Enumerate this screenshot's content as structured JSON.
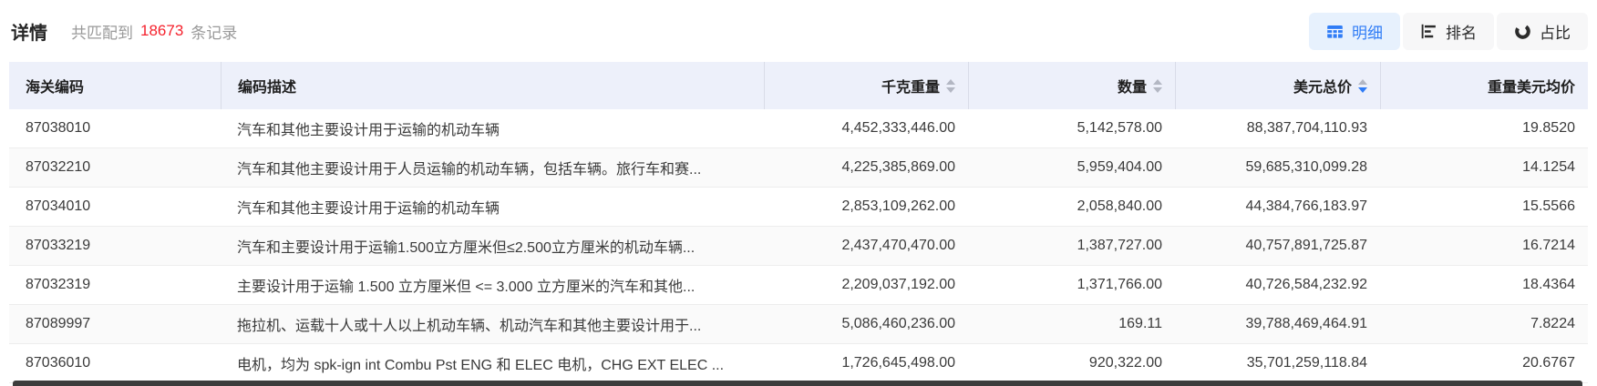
{
  "header": {
    "title": "详情",
    "match_prefix": "共匹配到",
    "match_count": "18673",
    "match_suffix": "条记录",
    "view_buttons": [
      {
        "label": "明细",
        "icon": "table-icon",
        "active": true
      },
      {
        "label": "排名",
        "icon": "bar-chart-icon",
        "active": false
      },
      {
        "label": "占比",
        "icon": "donut-chart-icon",
        "active": false
      }
    ]
  },
  "table": {
    "columns": [
      {
        "label": "海关编码",
        "align": "left",
        "sortable": false,
        "sort": "none"
      },
      {
        "label": "编码描述",
        "align": "left",
        "sortable": false,
        "sort": "none"
      },
      {
        "label": "千克重量",
        "align": "right",
        "sortable": true,
        "sort": "none"
      },
      {
        "label": "数量",
        "align": "right",
        "sortable": true,
        "sort": "none"
      },
      {
        "label": "美元总价",
        "align": "right",
        "sortable": true,
        "sort": "desc"
      },
      {
        "label": "重量美元均价",
        "align": "right",
        "sortable": false,
        "sort": "none"
      }
    ],
    "rows": [
      [
        "87038010",
        "汽车和其他主要设计用于运输的机动车辆",
        "4,452,333,446.00",
        "5,142,578.00",
        "88,387,704,110.93",
        "19.8520"
      ],
      [
        "87032210",
        "汽车和其他主要设计用于人员运输的机动车辆，包括车辆。旅行车和赛...",
        "4,225,385,869.00",
        "5,959,404.00",
        "59,685,310,099.28",
        "14.1254"
      ],
      [
        "87034010",
        "汽车和其他主要设计用于运输的机动车辆",
        "2,853,109,262.00",
        "2,058,840.00",
        "44,384,766,183.97",
        "15.5566"
      ],
      [
        "87033219",
        "汽车和主要设计用于运输1.500立方厘米但≤2.500立方厘米的机动车辆...",
        "2,437,470,470.00",
        "1,387,727.00",
        "40,757,891,725.87",
        "16.7214"
      ],
      [
        "87032319",
        "主要设计用于运输 1.500 立方厘米但 <= 3.000 立方厘米的汽车和其他...",
        "2,209,037,192.00",
        "1,371,766.00",
        "40,726,584,232.92",
        "18.4364"
      ],
      [
        "87089997",
        "拖拉机、运载十人或十人以上机动车辆、机动汽车和其他主要设计用于...",
        "5,086,460,236.00",
        "169.11",
        "39,788,469,464.91",
        "7.8224"
      ],
      [
        "87036010",
        "电机，均为 spk-ign int Combu Pst ENG 和 ELEC 电机，CHG EXT ELEC ...",
        "1,726,645,498.00",
        "920,322.00",
        "35,701,259,118.84",
        "20.6767"
      ]
    ]
  },
  "colors": {
    "accent_blue": "#2f7cf6",
    "count_red": "#f5222d",
    "header_bg": "#edf0fa",
    "active_button_bg": "#e7f1fd",
    "zebra_row_bg": "#fafafa"
  }
}
